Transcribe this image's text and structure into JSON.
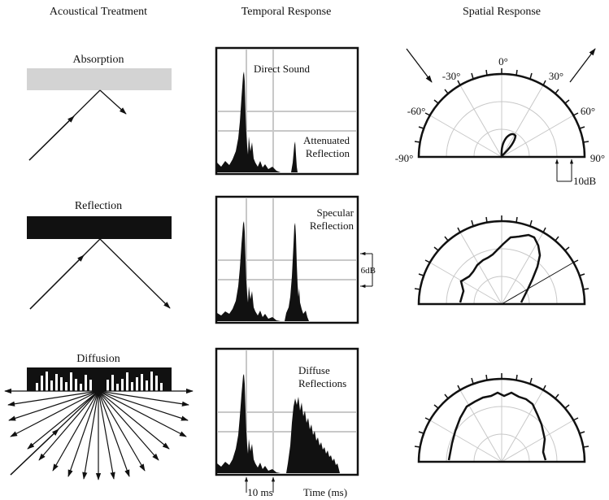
{
  "headers": {
    "col1": "Acoustical Treatment",
    "col2": "Temporal Response",
    "col3": "Spatial Response"
  },
  "rows": [
    {
      "treatment": "Absorption",
      "temporal_labels": [
        "Direct Sound",
        "Attenuated",
        "Reflection"
      ]
    },
    {
      "treatment": "Reflection",
      "temporal_labels": [
        "Specular",
        "Reflection"
      ]
    },
    {
      "treatment": "Diffusion",
      "temporal_labels": [
        "Diffuse",
        "Reflections"
      ]
    }
  ],
  "angle_labels": {
    "zero": "0°",
    "m30": "-30°",
    "p30": "30°",
    "m60": "-60°",
    "p60": "60°",
    "m90": "-90°",
    "p90": "90°"
  },
  "scale_labels": {
    "polar_step": "10dB",
    "temporal_step": "6dB",
    "time_step": "10 ms",
    "time_axis": "Time (ms)"
  },
  "colors": {
    "ink": "#111111",
    "absorber": "#d3d3d3",
    "grid": "#c8c8c8"
  }
}
